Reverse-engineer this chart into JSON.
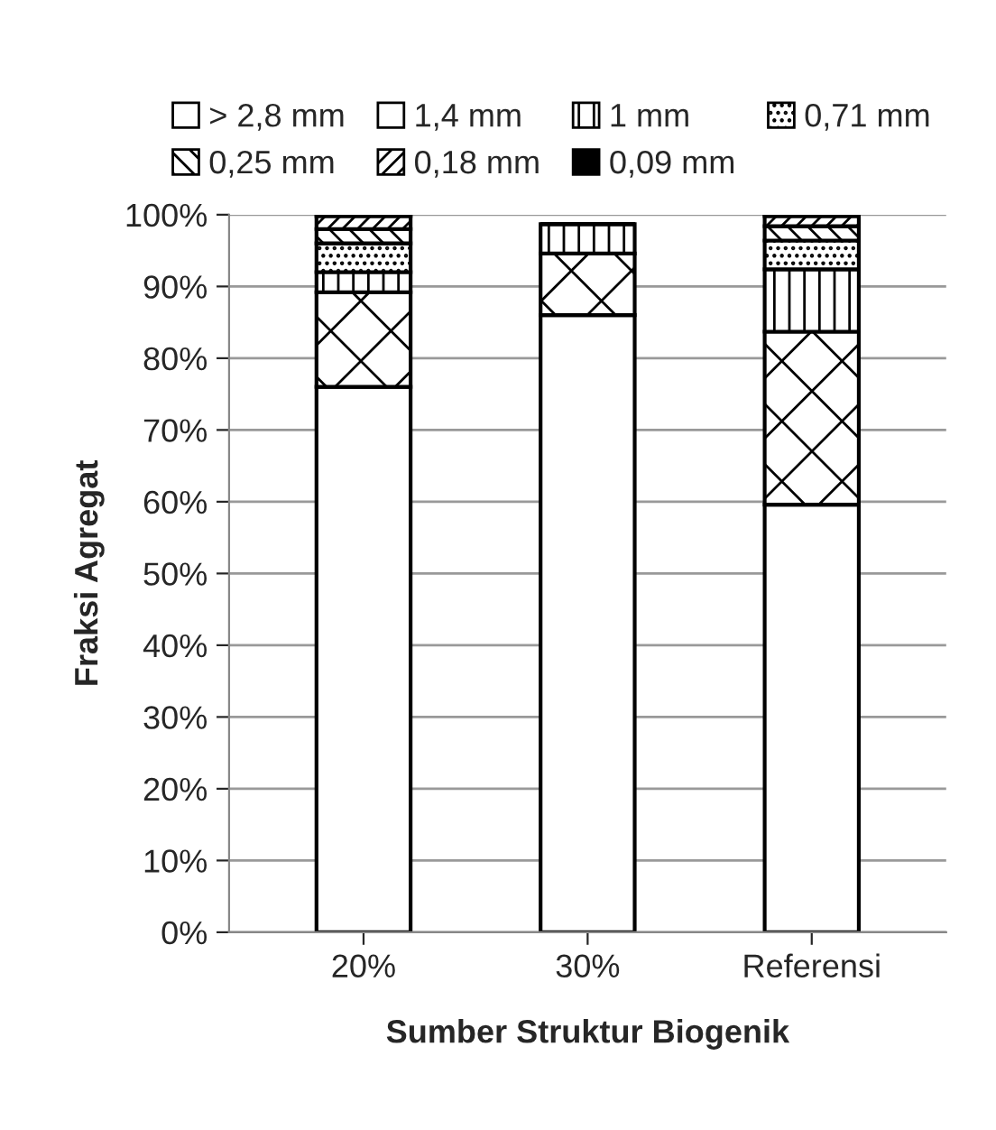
{
  "chart_data": {
    "type": "bar",
    "stacked": true,
    "xlabel": "Sumber Struktur Biogenik",
    "ylabel": "Fraksi Agregat",
    "categories": [
      "20%",
      "30%",
      "Referensi"
    ],
    "series": [
      {
        "name": "> 2,8 mm",
        "color": "#ffffff",
        "values": [
          76.0,
          86.0,
          59.6
        ]
      },
      {
        "name": "1,4 mm",
        "color": "#000000",
        "values": [
          13.2,
          8.6,
          24.1
        ]
      },
      {
        "name": "1 mm",
        "color": "#000000",
        "values": [
          2.8,
          4.1,
          8.7
        ]
      },
      {
        "name": "0,71 mm",
        "color": "#000000",
        "values": [
          4.0,
          null,
          4.0
        ]
      },
      {
        "name": "0,25 mm",
        "color": "#000000",
        "values": [
          2.0,
          null,
          2.0
        ]
      },
      {
        "name": "0,18 mm",
        "color": "#000000",
        "values": [
          1.8,
          null,
          1.4
        ]
      },
      {
        "name": "0,09 mm",
        "color": "#000000",
        "values": [
          0.2,
          null,
          0.2
        ]
      }
    ],
    "ylim": [
      0,
      100
    ],
    "yticks": [
      {
        "value": 0,
        "label": "0%"
      },
      {
        "value": 10,
        "label": "10%"
      },
      {
        "value": 20,
        "label": "20%"
      },
      {
        "value": 30,
        "label": "30%"
      },
      {
        "value": 40,
        "label": "40%"
      },
      {
        "value": 50,
        "label": "50%"
      },
      {
        "value": 60,
        "label": "60%"
      },
      {
        "value": 70,
        "label": "70%"
      },
      {
        "value": 80,
        "label": "80%"
      },
      {
        "value": 90,
        "label": "90%"
      },
      {
        "value": 100,
        "label": "100%"
      }
    ],
    "grid": "y",
    "legend": "top"
  }
}
